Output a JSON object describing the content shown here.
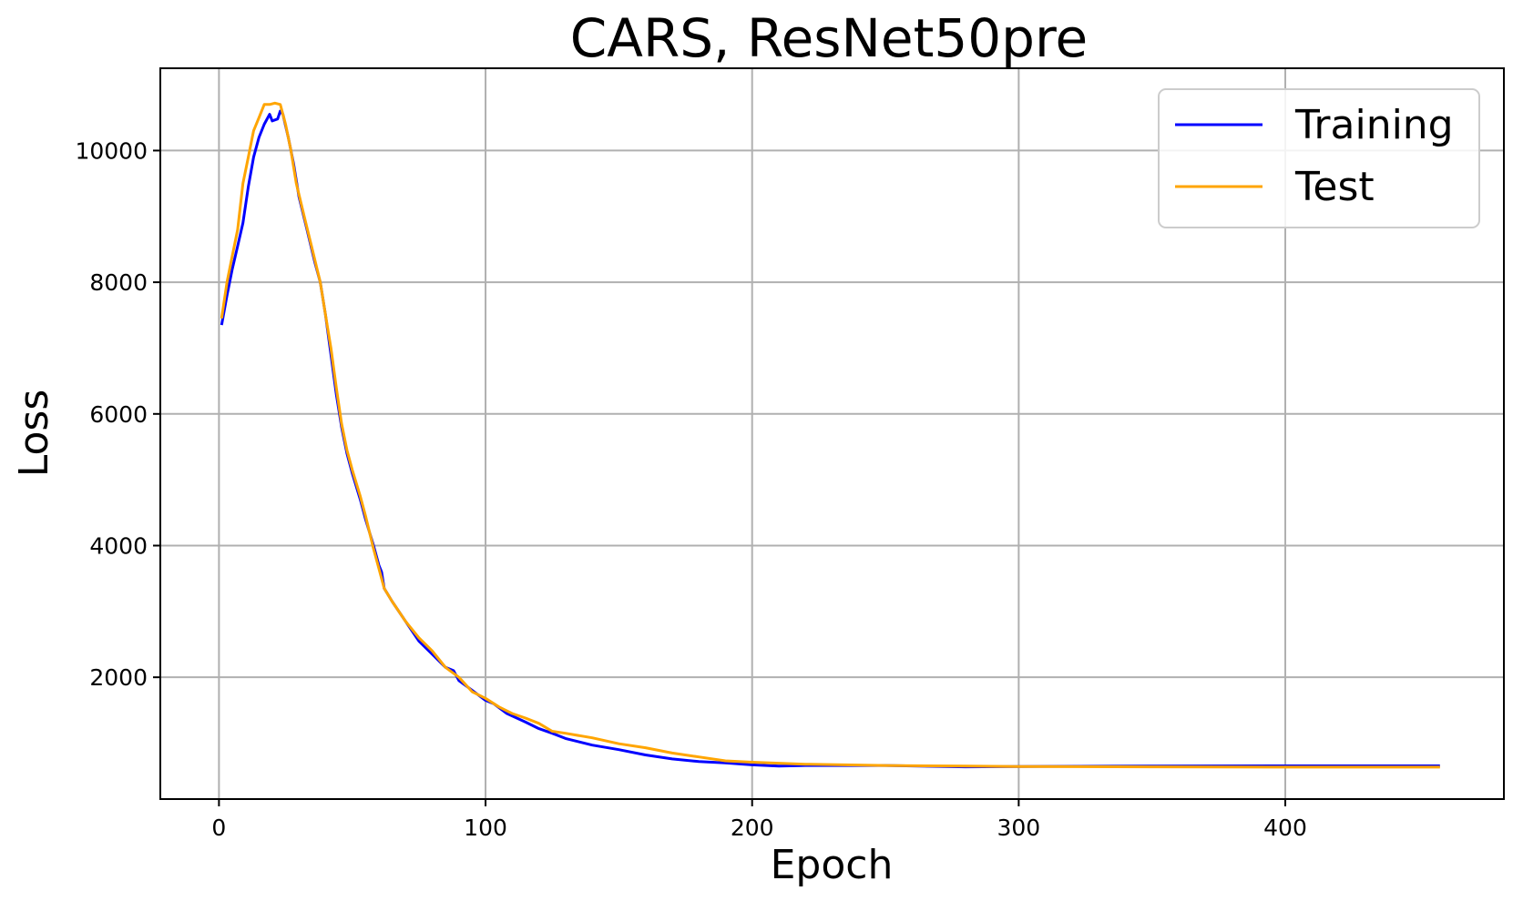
{
  "chart_data": {
    "type": "line",
    "title": "CARS, ResNet50pre",
    "xlabel": "Epoch",
    "ylabel": "Loss",
    "xlim": [
      -22,
      482
    ],
    "ylim": [
      150,
      11250
    ],
    "xticks": [
      0,
      100,
      200,
      300,
      400
    ],
    "xtick_labels": [
      "0",
      "100",
      "200",
      "300",
      "400"
    ],
    "yticks": [
      2000,
      4000,
      6000,
      8000,
      10000
    ],
    "ytick_labels": [
      "2000",
      "4000",
      "6000",
      "8000",
      "10000"
    ],
    "grid": true,
    "legend_position": "top-right",
    "series": [
      {
        "name": "Training",
        "color": "#0000ff",
        "points": [
          [
            1,
            7350
          ],
          [
            3,
            7800
          ],
          [
            5,
            8200
          ],
          [
            7,
            8550
          ],
          [
            9,
            8900
          ],
          [
            11,
            9450
          ],
          [
            13,
            9900
          ],
          [
            15,
            10200
          ],
          [
            17,
            10400
          ],
          [
            19,
            10550
          ],
          [
            20,
            10450
          ],
          [
            22,
            10480
          ],
          [
            23,
            10600
          ],
          [
            24,
            10550
          ],
          [
            26,
            10200
          ],
          [
            28,
            9800
          ],
          [
            30,
            9300
          ],
          [
            33,
            8800
          ],
          [
            36,
            8300
          ],
          [
            38,
            8000
          ],
          [
            40,
            7500
          ],
          [
            42,
            6900
          ],
          [
            44,
            6300
          ],
          [
            46,
            5800
          ],
          [
            48,
            5400
          ],
          [
            50,
            5100
          ],
          [
            53,
            4700
          ],
          [
            55,
            4400
          ],
          [
            58,
            4000
          ],
          [
            60,
            3700
          ],
          [
            61,
            3600
          ],
          [
            62,
            3350
          ],
          [
            65,
            3150
          ],
          [
            70,
            2850
          ],
          [
            75,
            2550
          ],
          [
            80,
            2350
          ],
          [
            85,
            2150
          ],
          [
            88,
            2100
          ],
          [
            90,
            1950
          ],
          [
            95,
            1800
          ],
          [
            100,
            1650
          ],
          [
            103,
            1600
          ],
          [
            108,
            1450
          ],
          [
            115,
            1320
          ],
          [
            120,
            1220
          ],
          [
            125,
            1150
          ],
          [
            130,
            1070
          ],
          [
            135,
            1020
          ],
          [
            140,
            970
          ],
          [
            150,
            900
          ],
          [
            160,
            820
          ],
          [
            170,
            760
          ],
          [
            180,
            720
          ],
          [
            190,
            700
          ],
          [
            200,
            670
          ],
          [
            210,
            650
          ],
          [
            220,
            660
          ],
          [
            250,
            660
          ],
          [
            280,
            640
          ],
          [
            300,
            645
          ],
          [
            350,
            650
          ],
          [
            400,
            655
          ],
          [
            458,
            655
          ]
        ]
      },
      {
        "name": "Test",
        "color": "#ffa500",
        "points": [
          [
            1,
            7450
          ],
          [
            3,
            8000
          ],
          [
            5,
            8400
          ],
          [
            7,
            8800
          ],
          [
            9,
            9500
          ],
          [
            11,
            9900
          ],
          [
            13,
            10300
          ],
          [
            15,
            10500
          ],
          [
            17,
            10700
          ],
          [
            19,
            10700
          ],
          [
            21,
            10720
          ],
          [
            23,
            10700
          ],
          [
            25,
            10400
          ],
          [
            27,
            10000
          ],
          [
            29,
            9500
          ],
          [
            32,
            9000
          ],
          [
            35,
            8500
          ],
          [
            38,
            8000
          ],
          [
            40,
            7500
          ],
          [
            42,
            7000
          ],
          [
            44,
            6400
          ],
          [
            46,
            5850
          ],
          [
            48,
            5450
          ],
          [
            50,
            5150
          ],
          [
            53,
            4750
          ],
          [
            55,
            4450
          ],
          [
            58,
            3950
          ],
          [
            60,
            3650
          ],
          [
            62,
            3350
          ],
          [
            65,
            3150
          ],
          [
            70,
            2850
          ],
          [
            75,
            2600
          ],
          [
            80,
            2400
          ],
          [
            85,
            2150
          ],
          [
            90,
            2000
          ],
          [
            95,
            1780
          ],
          [
            100,
            1680
          ],
          [
            105,
            1550
          ],
          [
            110,
            1450
          ],
          [
            115,
            1380
          ],
          [
            120,
            1300
          ],
          [
            125,
            1180
          ],
          [
            130,
            1150
          ],
          [
            140,
            1080
          ],
          [
            150,
            990
          ],
          [
            160,
            930
          ],
          [
            170,
            850
          ],
          [
            180,
            790
          ],
          [
            190,
            730
          ],
          [
            200,
            710
          ],
          [
            220,
            680
          ],
          [
            250,
            660
          ],
          [
            280,
            650
          ],
          [
            300,
            645
          ],
          [
            350,
            640
          ],
          [
            400,
            635
          ],
          [
            458,
            635
          ]
        ]
      }
    ]
  }
}
